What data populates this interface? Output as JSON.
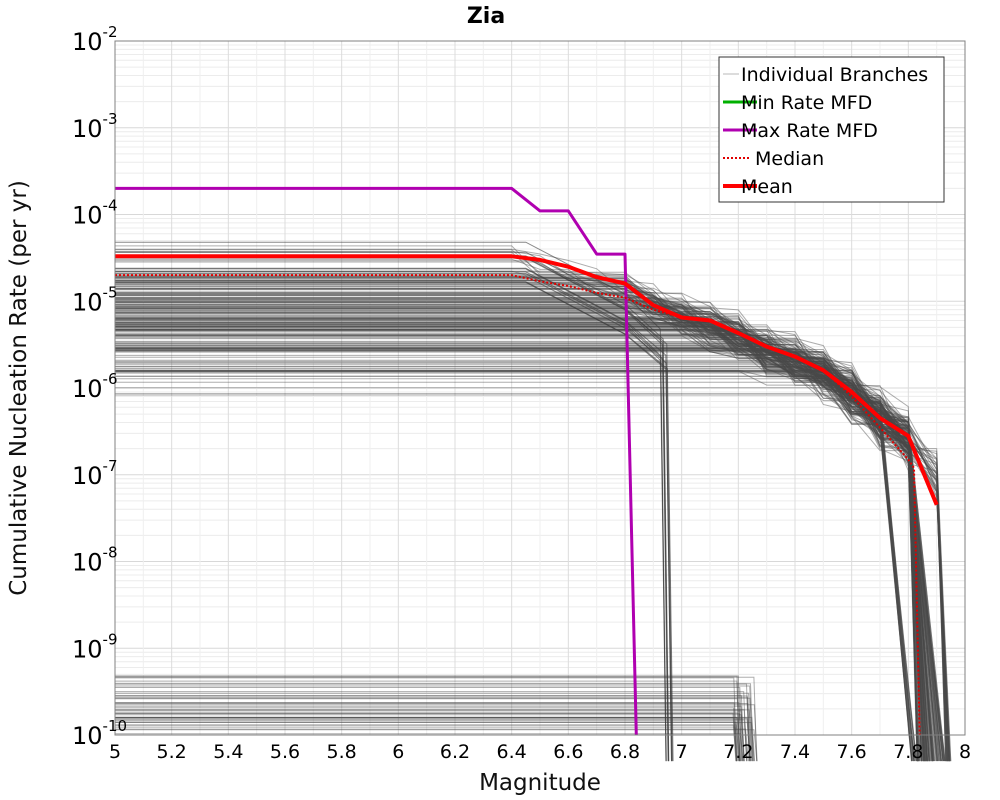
{
  "chart_data": {
    "type": "line",
    "title": "Zia",
    "xlabel": "Magnitude",
    "ylabel": "Cumulative Nucleation Rate (per yr)",
    "xlim": [
      5,
      8
    ],
    "ylim": [
      1e-10,
      0.01
    ],
    "yscale": "log",
    "grid": true,
    "legend_position": "top-right",
    "x_ticks": [
      "5",
      "5.2",
      "5.4",
      "5.6",
      "5.8",
      "6",
      "6.2",
      "6.4",
      "6.6",
      "6.8",
      "7",
      "7.2",
      "7.4",
      "7.6",
      "7.8",
      "8"
    ],
    "y_ticks": [
      {
        "base": "10",
        "exp": "-2"
      },
      {
        "base": "10",
        "exp": "-3"
      },
      {
        "base": "10",
        "exp": "-4"
      },
      {
        "base": "10",
        "exp": "-5"
      },
      {
        "base": "10",
        "exp": "-6"
      },
      {
        "base": "10",
        "exp": "-7"
      },
      {
        "base": "10",
        "exp": "-8"
      },
      {
        "base": "10",
        "exp": "-9"
      },
      {
        "base": "10",
        "exp": "-10"
      }
    ],
    "legend": [
      {
        "label": "Individual Branches",
        "color": "#b8b8b8",
        "style": "thin"
      },
      {
        "label": "Min Rate MFD",
        "color": "#00b000",
        "style": "solid"
      },
      {
        "label": "Max Rate MFD",
        "color": "#b000b0",
        "style": "solid"
      },
      {
        "label": "Median",
        "color": "#e00000",
        "style": "dotted"
      },
      {
        "label": "Mean",
        "color": "#ff0000",
        "style": "thick"
      }
    ],
    "series": [
      {
        "name": "Max Rate MFD",
        "color": "#b000b0",
        "x": [
          5.0,
          6.4,
          6.5,
          6.6,
          6.7,
          6.8,
          6.84
        ],
        "y": [
          0.0002,
          0.0002,
          0.00011,
          0.00011,
          3.5e-05,
          3.5e-05,
          1e-10
        ]
      },
      {
        "name": "Median",
        "color": "#e00000",
        "x": [
          5.0,
          6.4,
          6.5,
          6.6,
          6.7,
          6.8,
          6.9,
          7.0,
          7.1,
          7.2,
          7.3,
          7.4,
          7.5,
          7.6,
          7.7,
          7.8,
          7.82,
          7.84
        ],
        "y": [
          2e-05,
          2e-05,
          1.7e-05,
          1.5e-05,
          1.25e-05,
          1.1e-05,
          8e-06,
          6.5e-06,
          6e-06,
          4.3e-06,
          3e-06,
          2.3e-06,
          1.6e-06,
          8e-07,
          3.5e-07,
          1.5e-07,
          1.2e-07,
          1e-10
        ]
      },
      {
        "name": "Mean",
        "color": "#ff0000",
        "x": [
          5.0,
          6.4,
          6.5,
          6.6,
          6.7,
          6.8,
          6.9,
          7.0,
          7.1,
          7.2,
          7.3,
          7.4,
          7.5,
          7.6,
          7.7,
          7.8,
          7.9
        ],
        "y": [
          3.3e-05,
          3.3e-05,
          3e-05,
          2.5e-05,
          1.9e-05,
          1.6e-05,
          9e-06,
          6.5e-06,
          6e-06,
          4.3e-06,
          3e-06,
          2.3e-06,
          1.6e-06,
          9e-07,
          4.5e-07,
          2.8e-07,
          4.5e-08
        ]
      }
    ]
  }
}
